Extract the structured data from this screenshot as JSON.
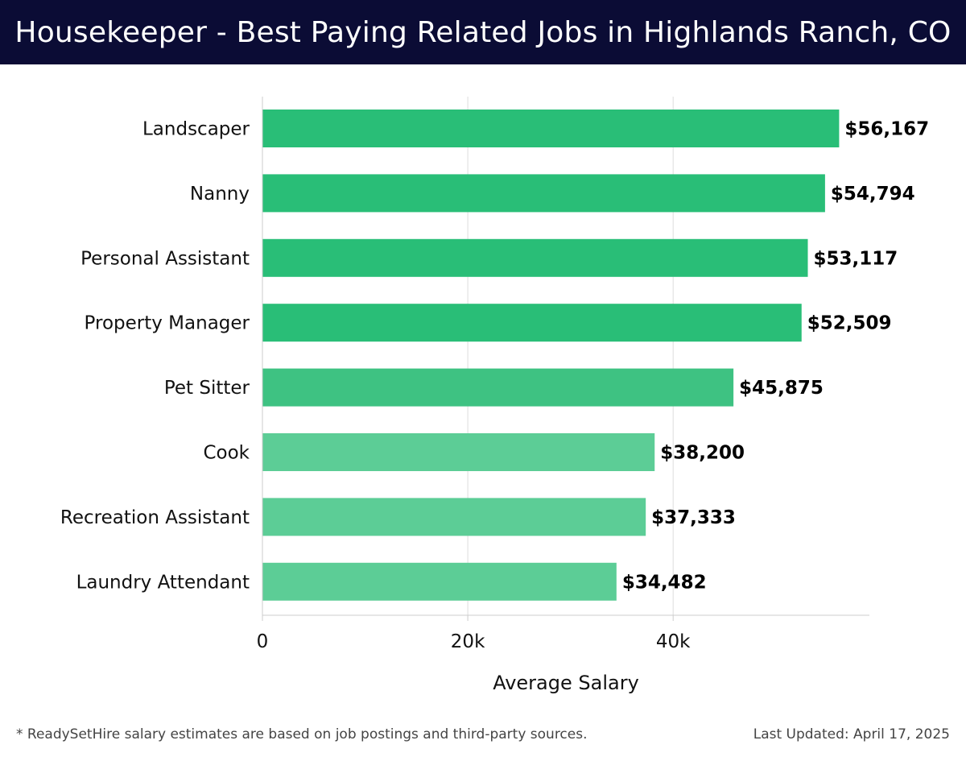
{
  "header": {
    "title": "Housekeeper - Best Paying Related Jobs in Highlands Ranch, CO"
  },
  "chart_data": {
    "type": "bar",
    "orientation": "horizontal",
    "categories": [
      "Landscaper",
      "Nanny",
      "Personal Assistant",
      "Property Manager",
      "Pet Sitter",
      "Cook",
      "Recreation Assistant",
      "Laundry Attendant"
    ],
    "values": [
      56167,
      54794,
      53117,
      52509,
      45875,
      38200,
      37333,
      34482
    ],
    "value_labels": [
      "$56,167",
      "$54,794",
      "$53,117",
      "$52,509",
      "$45,875",
      "$38,200",
      "$37,333",
      "$34,482"
    ],
    "xlabel": "Average Salary",
    "x_ticks": [
      0,
      20000,
      40000
    ],
    "x_tick_labels": [
      "0",
      "20k",
      "40k"
    ],
    "xlim": [
      0,
      59000
    ],
    "grid": true,
    "colors": {
      "bar_dark": "#29be77",
      "bar_light": "#5ccd96"
    }
  },
  "footer": {
    "note": "* ReadySetHire salary estimates are based on job postings and third-party sources.",
    "updated": "Last Updated: April 17, 2025"
  }
}
